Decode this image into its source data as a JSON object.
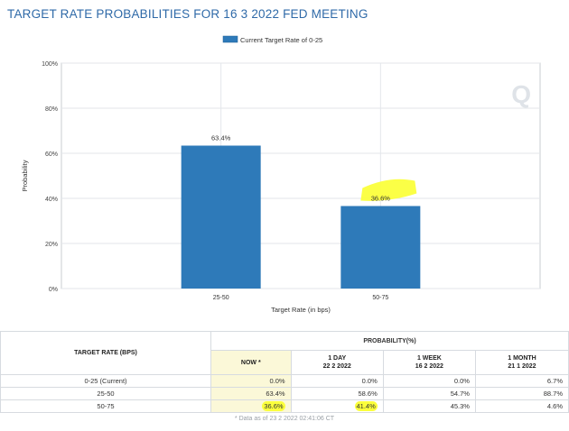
{
  "page_title": "TARGET RATE PROBABILITIES FOR 16 3 2022 FED MEETING",
  "logo_text": "Q",
  "chart_data": {
    "type": "bar",
    "title": "TARGET RATE PROBABILITIES FOR 16 3 2022 FED MEETING",
    "legend": "Current Target Rate of 0-25",
    "categories": [
      "25-50",
      "50-75"
    ],
    "values": [
      63.4,
      36.6
    ],
    "value_labels": [
      "63.4%",
      "36.6%"
    ],
    "xlabel": "Target Rate (in bps)",
    "ylabel": "Probability",
    "ylim": [
      0,
      100
    ],
    "yticks": [
      0,
      20,
      40,
      60,
      80,
      100
    ],
    "ytick_labels": [
      "0%",
      "20%",
      "40%",
      "60%",
      "80%",
      "100%"
    ],
    "grid": true,
    "bar_color": "#2e7ab9",
    "highlight_color": "#fbff3c"
  },
  "table": {
    "left_header": "TARGET RATE (BPS)",
    "prob_header": "PROBABILITY(%)",
    "columns": [
      {
        "line1": "NOW *",
        "line2": ""
      },
      {
        "line1": "1 DAY",
        "line2": "22 2 2022"
      },
      {
        "line1": "1 WEEK",
        "line2": "16 2 2022"
      },
      {
        "line1": "1 MONTH",
        "line2": "21 1 2022"
      }
    ],
    "rows": [
      {
        "rate": "0-25 (Current)",
        "values": [
          "0.0%",
          "0.0%",
          "0.0%",
          "6.7%"
        ]
      },
      {
        "rate": "25-50",
        "values": [
          "63.4%",
          "58.6%",
          "54.7%",
          "88.7%"
        ]
      },
      {
        "rate": "50-75",
        "values": [
          "36.6%",
          "41.4%",
          "45.3%",
          "4.6%"
        ]
      }
    ],
    "note": "* Data as of 23 2 2022 02:41:06 CT"
  }
}
